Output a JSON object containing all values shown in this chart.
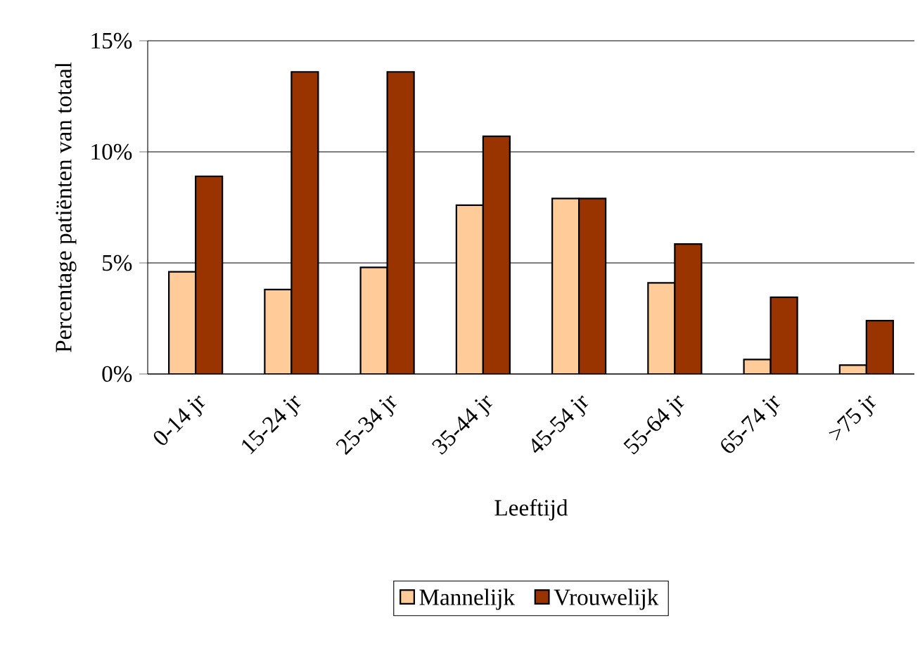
{
  "chart_data": {
    "type": "bar",
    "xlabel": "Leeftijd",
    "ylabel": "Percentage patiënten van totaal",
    "categories": [
      "0-14 jr",
      "15-24 jr",
      "25-34 jr",
      "35-44 jr",
      "45-54 jr",
      "55-64 jr",
      "65-74 jr",
      ">75 jr"
    ],
    "series": [
      {
        "name": "Mannelijk",
        "color": "#ffcc99",
        "values": [
          4.6,
          3.8,
          4.8,
          7.6,
          7.9,
          4.1,
          0.65,
          0.4
        ]
      },
      {
        "name": "Vrouwelijk",
        "color": "#993300",
        "values": [
          8.9,
          13.6,
          13.6,
          10.7,
          7.9,
          5.85,
          3.45,
          2.4
        ]
      }
    ],
    "ylim": [
      0,
      15
    ],
    "yticks": [
      {
        "value": 0,
        "label": "0%"
      },
      {
        "value": 5,
        "label": "5%"
      },
      {
        "value": 10,
        "label": "10%"
      },
      {
        "value": 15,
        "label": "15%"
      }
    ],
    "grid": "y",
    "legend": "bottom"
  }
}
